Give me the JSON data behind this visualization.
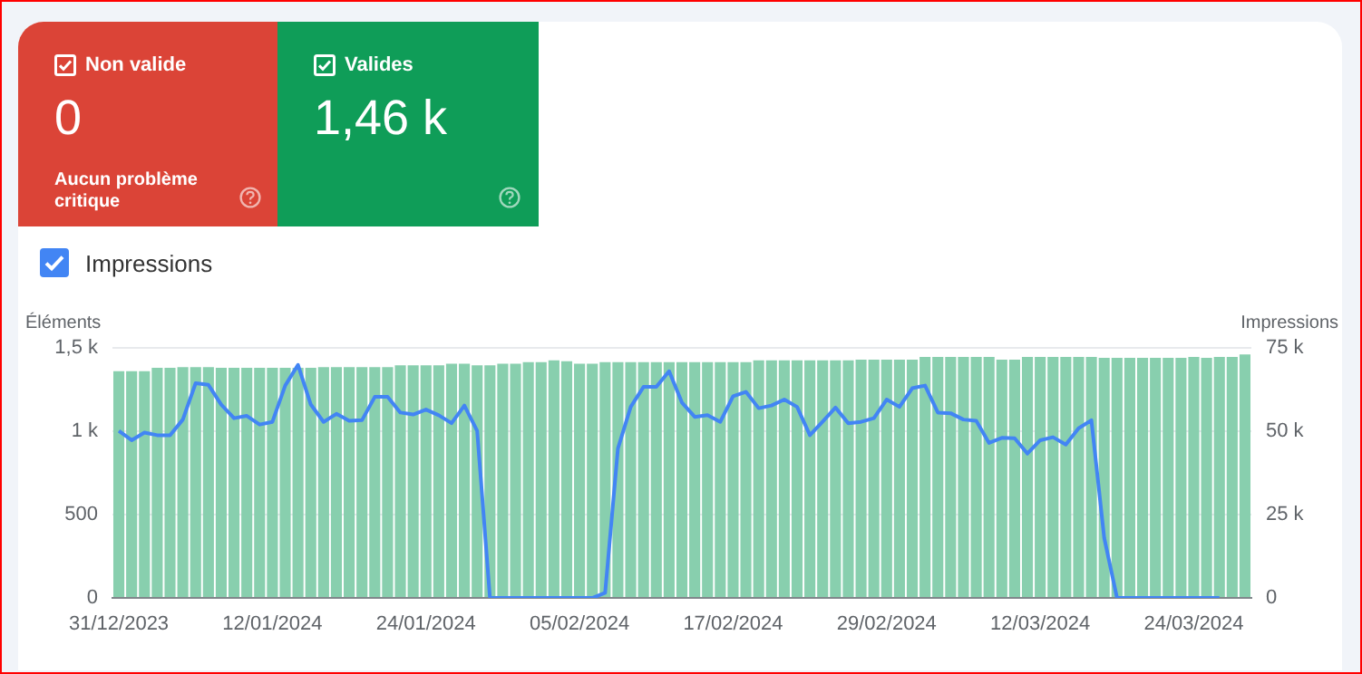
{
  "chart_data": {
    "type": "bar",
    "annotations": [
      "Non valide",
      "0",
      "Aucun problème critique",
      "Valides",
      "1,46 k"
    ],
    "ylabel": "Éléments",
    "y2label": "Impressions",
    "categories": [
      "31/12/2023",
      null,
      null,
      null,
      null,
      null,
      null,
      null,
      null,
      null,
      null,
      null,
      "12/01/2024",
      null,
      null,
      null,
      null,
      null,
      null,
      null,
      null,
      null,
      null,
      null,
      "24/01/2024",
      null,
      null,
      null,
      null,
      null,
      null,
      null,
      null,
      null,
      null,
      null,
      "05/02/2024",
      null,
      null,
      null,
      null,
      null,
      null,
      null,
      null,
      null,
      null,
      null,
      "17/02/2024",
      null,
      null,
      null,
      null,
      null,
      null,
      null,
      null,
      null,
      null,
      null,
      "29/02/2024",
      null,
      null,
      null,
      null,
      null,
      null,
      null,
      null,
      null,
      null,
      null,
      "12/03/2024",
      null,
      null,
      null,
      null,
      null,
      null,
      null,
      null,
      null,
      null,
      null,
      "24/03/2024",
      null,
      null,
      null,
      null
    ],
    "series": [
      {
        "color": "#88cfae",
        "values": [
          1360,
          1360,
          1360,
          1380,
          1380,
          1385,
          1385,
          1385,
          1380,
          1380,
          1380,
          1380,
          1380,
          1380,
          1380,
          1380,
          1385,
          1385,
          1385,
          1385,
          1385,
          1385,
          1395,
          1395,
          1395,
          1395,
          1405,
          1405,
          1395,
          1395,
          1405,
          1405,
          1415,
          1415,
          1425,
          1420,
          1405,
          1405,
          1415,
          1415,
          1415,
          1415,
          1415,
          1415,
          1415,
          1415,
          1415,
          1415,
          1415,
          1415,
          1425,
          1425,
          1425,
          1425,
          1425,
          1425,
          1425,
          1425,
          1430,
          1430,
          1430,
          1430,
          1430,
          1445,
          1445,
          1445,
          1445,
          1445,
          1445,
          1430,
          1430,
          1445,
          1445,
          1445,
          1445,
          1445,
          1445,
          1440,
          1440,
          1440,
          1440,
          1440,
          1440,
          1440,
          1445,
          1440,
          1445,
          1445,
          1460
        ]
      },
      {
        "type": "line",
        "name": "Impressions",
        "axis": "y2",
        "color": "#4285f4",
        "values": [
          50100,
          47300,
          49600,
          48800,
          48800,
          53500,
          64400,
          63900,
          58000,
          53900,
          54600,
          52000,
          52800,
          63700,
          69900,
          58000,
          52800,
          55200,
          53100,
          53300,
          60300,
          60300,
          55600,
          55000,
          56500,
          54800,
          52400,
          57700,
          50100,
          0,
          0,
          0,
          0,
          0,
          0,
          0,
          0,
          0,
          1500,
          44800,
          57300,
          63300,
          63300,
          68000,
          58600,
          54300,
          54800,
          52800,
          60500,
          61800,
          56900,
          57700,
          59500,
          57300,
          48800,
          52900,
          57100,
          52400,
          52800,
          53900,
          59500,
          57300,
          62900,
          63700,
          55600,
          55400,
          53500,
          53100,
          46500,
          48000,
          47900,
          43300,
          47300,
          48200,
          46000,
          50900,
          53300,
          18000,
          0,
          0,
          0,
          0,
          0,
          0,
          0,
          0,
          0,
          null,
          null
        ]
      }
    ],
    "ylim": [
      0,
      1500
    ],
    "yticks": [
      0,
      500,
      {
        "value": 1000,
        "label": "1 k"
      },
      {
        "value": 1500,
        "label": "1,5 k"
      }
    ],
    "y2lim": [
      0,
      75000
    ],
    "y2ticks": [
      0,
      {
        "value": 25000,
        "label": "25 k"
      },
      {
        "value": 50000,
        "label": "50 k"
      },
      {
        "value": 75000,
        "label": "75 k"
      }
    ],
    "grid": "y",
    "legend": "top left"
  }
}
